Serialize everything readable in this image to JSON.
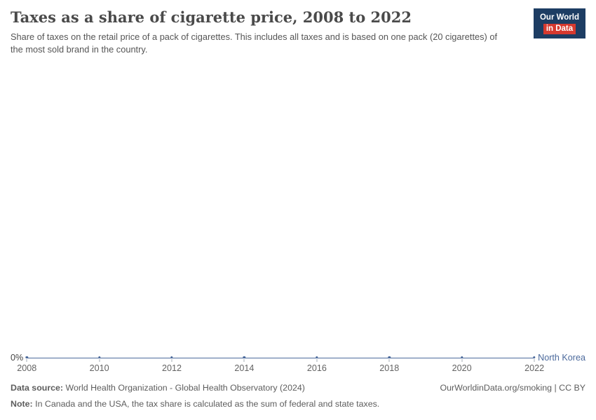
{
  "header": {
    "title": "Taxes as a share of cigarette price, 2008 to 2022",
    "subtitle": "Share of taxes on the retail price of a pack of cigarettes. This includes all taxes and is based on one pack (20 cigarettes) of the most sold brand in the country.",
    "logo": {
      "line1": "Our World",
      "line2": "in Data"
    }
  },
  "chart_data": {
    "type": "line",
    "title": "Taxes as a share of cigarette price, 2008 to 2022",
    "x": [
      2008,
      2010,
      2012,
      2014,
      2016,
      2018,
      2020,
      2022
    ],
    "xtick_labels": [
      "2008",
      "2010",
      "2012",
      "2014",
      "2016",
      "2018",
      "2020",
      "2022"
    ],
    "ytick_labels": [
      "0%"
    ],
    "ylim": [
      0,
      1
    ],
    "grid": false,
    "legend_position": "right-of-line-end",
    "series": [
      {
        "name": "North Korea",
        "color": "#4C6A9C",
        "unit": "%",
        "values": [
          0,
          0,
          0,
          0,
          0,
          0,
          0,
          0
        ]
      }
    ]
  },
  "colors": {
    "line": "#4C6A9C",
    "entity_label": "#4C6A9C",
    "logo_navy": "#1d3d63",
    "logo_red": "#d6392f",
    "axis_tick": "#a6adb5",
    "text_muted": "#5d5d5d"
  },
  "footer": {
    "datasource_label": "Data source:",
    "datasource_text": "World Health Organization - Global Health Observatory (2024)",
    "link": "OurWorldinData.org/smoking | CC BY",
    "note_label": "Note:",
    "note_text": "In Canada and the USA, the tax share is calculated as the sum of federal and state taxes."
  }
}
